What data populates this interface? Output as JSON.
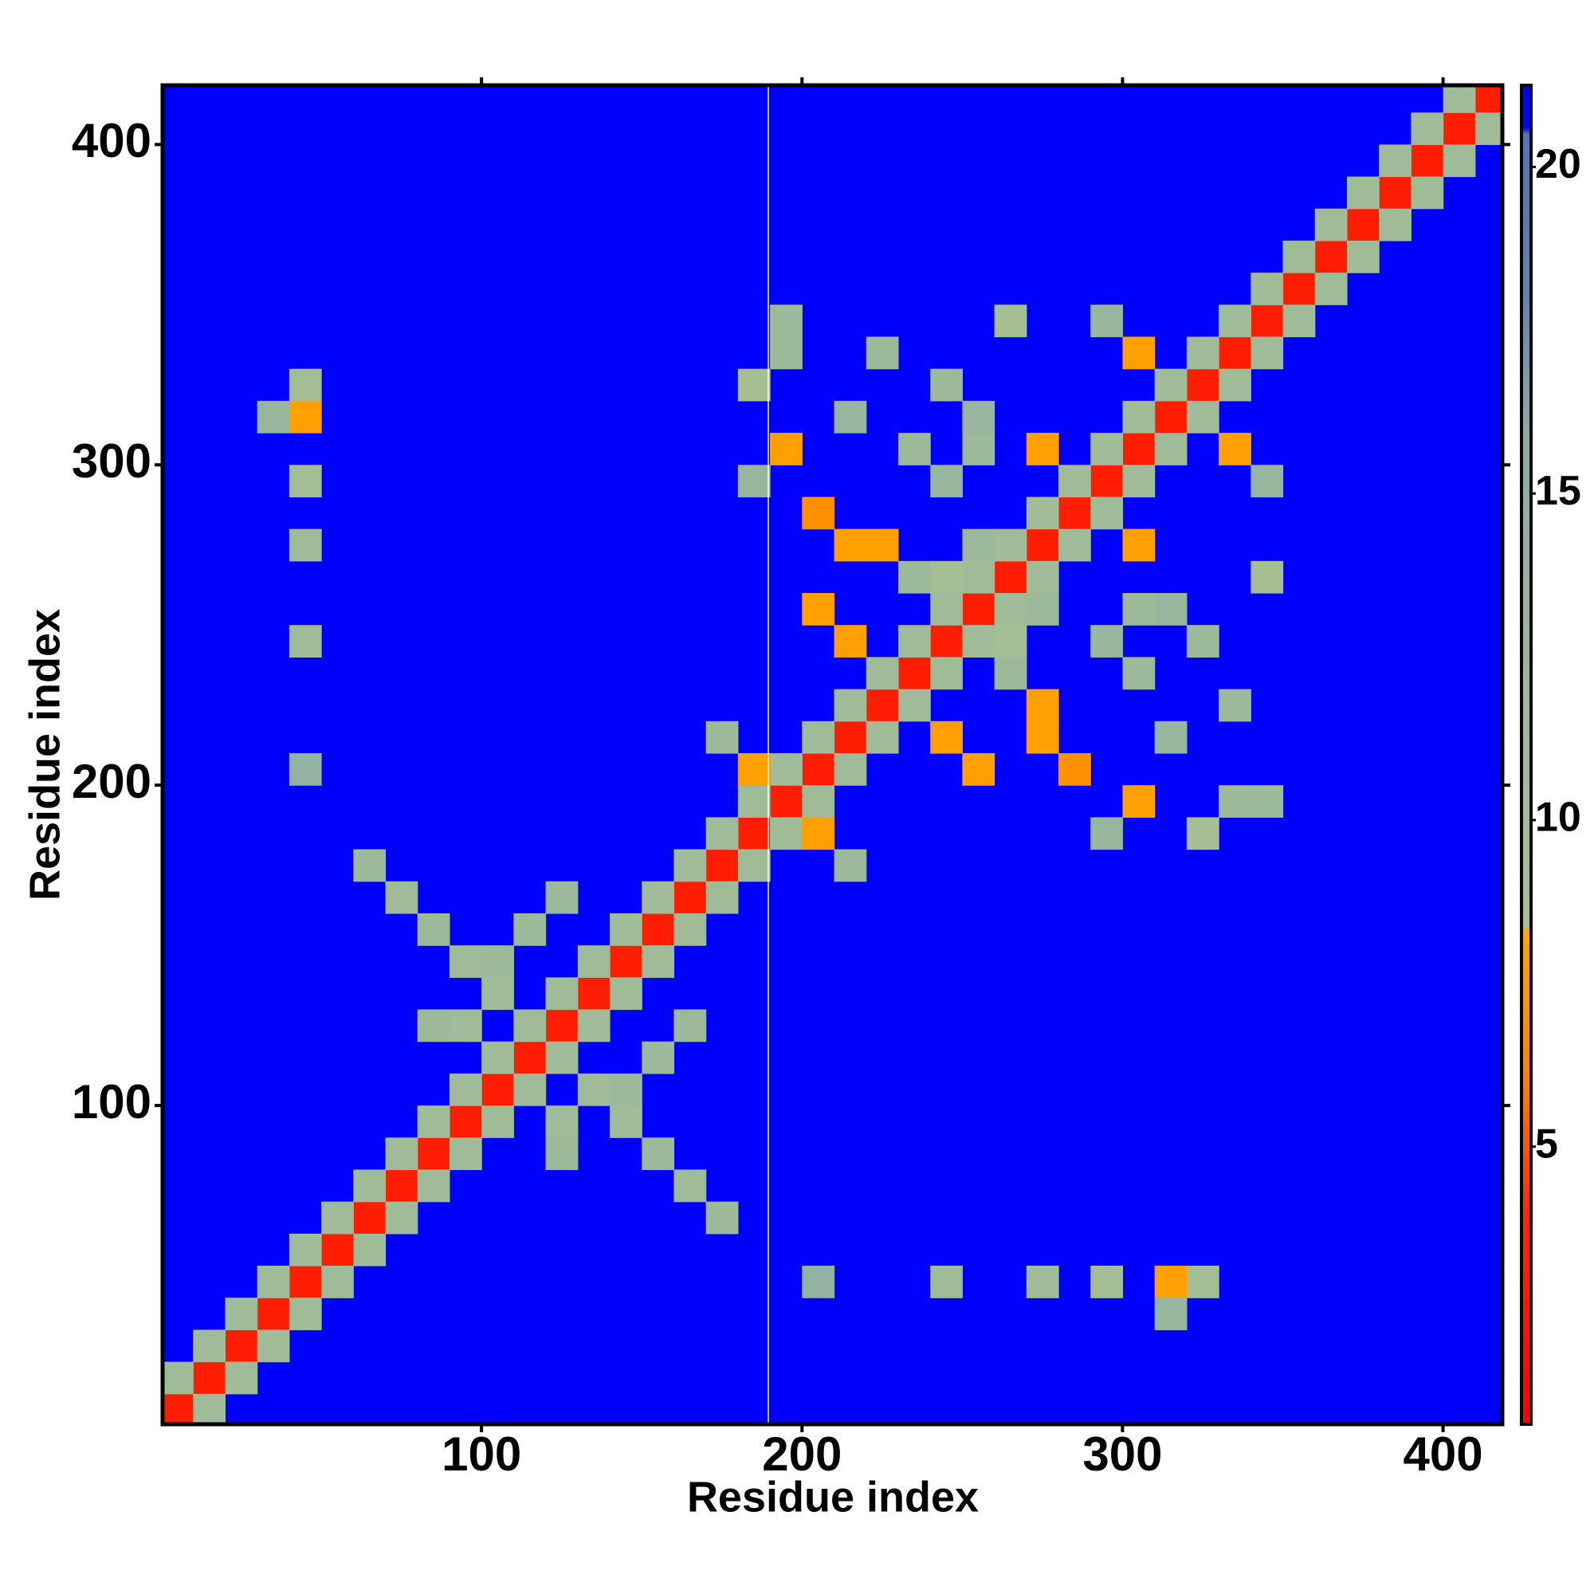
{
  "chart_data": {
    "type": "heatmap",
    "xlabel": "Residue index",
    "ylabel": "Residue index",
    "xlim": [
      0.5,
      418.5
    ],
    "ylim": [
      0.5,
      418.5
    ],
    "xticks": [
      100,
      200,
      300,
      400
    ],
    "yticks": [
      100,
      200,
      300,
      400
    ],
    "clim": [
      0.75,
      21.25
    ],
    "cticks": [
      5,
      10,
      15,
      20
    ],
    "background_color": "#0000ff",
    "colorscale": [
      [
        0.75,
        "#ff0000"
      ],
      [
        4,
        "#ff2a00"
      ],
      [
        6,
        "#ff7f00"
      ],
      [
        8.3,
        "#ffa500"
      ],
      [
        8.4,
        "#a8c090"
      ],
      [
        12,
        "#9cb99a"
      ],
      [
        16,
        "#8aaaa8"
      ],
      [
        18,
        "#5f86b0"
      ],
      [
        20.5,
        "#4a78b8"
      ],
      [
        20.6,
        "#0000ff"
      ],
      [
        21.25,
        "#0000ff"
      ]
    ],
    "x": [
      5,
      15,
      25,
      35,
      45,
      55,
      65,
      75,
      85,
      95,
      105,
      115,
      125,
      135,
      145,
      155,
      165,
      175,
      185,
      195,
      205,
      215,
      225,
      235,
      245,
      255,
      265,
      275,
      285,
      295,
      305,
      315,
      325,
      335,
      345,
      355,
      365,
      375,
      385,
      395,
      405,
      415,
      5,
      15,
      25,
      35,
      45,
      55,
      65,
      75,
      85,
      95,
      105,
      115,
      125,
      135,
      145,
      155,
      165,
      175,
      185,
      195,
      205,
      215,
      225,
      235,
      245,
      255,
      265,
      275,
      285,
      295,
      305,
      315,
      325,
      335,
      345,
      355,
      365,
      375,
      385,
      395,
      405,
      15,
      25,
      35,
      45,
      55,
      65,
      75,
      85,
      95,
      105,
      115,
      125,
      135,
      145,
      155,
      165,
      175,
      185,
      195,
      205,
      215,
      225,
      235,
      245,
      255,
      265,
      275,
      285,
      295,
      305,
      315,
      325,
      335,
      345,
      355,
      365,
      375,
      385,
      395,
      405,
      415,
      65,
      75,
      85,
      95,
      105,
      85,
      95,
      115,
      125,
      105,
      45,
      45,
      45,
      45,
      45,
      35,
      45,
      185,
      175,
      195,
      195,
      185,
      205,
      215,
      245,
      265,
      235,
      255,
      275,
      305,
      295,
      205,
      215,
      225,
      185,
      195,
      215,
      225,
      255,
      245,
      235,
      255,
      245,
      175,
      165,
      155,
      145,
      135,
      125,
      125,
      155,
      165,
      145,
      325,
      315,
      295,
      275,
      245,
      315,
      205,
      205,
      215,
      335,
      305,
      295,
      285,
      275,
      325,
      345,
      305,
      305,
      305,
      335,
      345,
      255,
      245,
      275,
      325,
      345,
      315,
      335,
      315,
      295,
      265,
      275,
      265
    ],
    "y": [
      5,
      15,
      25,
      35,
      45,
      55,
      65,
      75,
      85,
      95,
      105,
      115,
      125,
      135,
      145,
      155,
      165,
      175,
      185,
      195,
      205,
      215,
      225,
      235,
      245,
      255,
      265,
      275,
      285,
      295,
      305,
      315,
      325,
      335,
      345,
      355,
      365,
      375,
      385,
      395,
      405,
      415,
      15,
      25,
      35,
      45,
      55,
      65,
      75,
      85,
      95,
      105,
      115,
      125,
      135,
      145,
      155,
      165,
      175,
      185,
      195,
      205,
      215,
      225,
      235,
      245,
      255,
      265,
      275,
      285,
      295,
      305,
      315,
      325,
      335,
      345,
      355,
      365,
      375,
      385,
      395,
      405,
      415,
      5,
      15,
      25,
      35,
      45,
      55,
      65,
      75,
      85,
      95,
      105,
      115,
      125,
      135,
      145,
      155,
      165,
      175,
      185,
      195,
      205,
      215,
      225,
      235,
      245,
      255,
      265,
      275,
      285,
      295,
      305,
      315,
      325,
      335,
      345,
      355,
      365,
      375,
      385,
      395,
      405,
      175,
      165,
      155,
      145,
      135,
      125,
      125,
      155,
      165,
      145,
      325,
      315,
      295,
      275,
      245,
      315,
      205,
      205,
      215,
      335,
      305,
      295,
      285,
      275,
      325,
      345,
      305,
      305,
      305,
      335,
      345,
      255,
      245,
      275,
      325,
      345,
      315,
      335,
      315,
      295,
      265,
      275,
      265,
      65,
      75,
      85,
      95,
      105,
      85,
      95,
      115,
      125,
      105,
      45,
      45,
      45,
      45,
      45,
      35,
      45,
      185,
      175,
      195,
      195,
      185,
      205,
      215,
      245,
      265,
      235,
      255,
      275,
      305,
      295,
      205,
      215,
      225,
      185,
      195,
      215,
      225,
      255,
      245,
      235,
      255,
      245
    ],
    "values": [
      3,
      3,
      3,
      3,
      3,
      3,
      3,
      3,
      3,
      3,
      3,
      3,
      3,
      3,
      3,
      3,
      3,
      3,
      3,
      3,
      3,
      3,
      3,
      3,
      3,
      3,
      3,
      3,
      3,
      3,
      3,
      3,
      3,
      3,
      3,
      3,
      3,
      3,
      3,
      3,
      3,
      3,
      11,
      11,
      11,
      11,
      11,
      11,
      11,
      11,
      11,
      11,
      11,
      11,
      11,
      11,
      11,
      11,
      11,
      11,
      11,
      11,
      11,
      11,
      11,
      11,
      11,
      11,
      11,
      11,
      11,
      11,
      11,
      11,
      11,
      11,
      11,
      11,
      11,
      11,
      11,
      11,
      11,
      11,
      11,
      11,
      11,
      11,
      11,
      11,
      11,
      11,
      11,
      11,
      11,
      11,
      11,
      11,
      11,
      11,
      11,
      11,
      11,
      11,
      11,
      11,
      11,
      11,
      11,
      11,
      11,
      11,
      11,
      11,
      11,
      11,
      11,
      11,
      11,
      11,
      11,
      11,
      11,
      11,
      12,
      11,
      12,
      11,
      11,
      12,
      11,
      12,
      12,
      12,
      10,
      8,
      10,
      11,
      11,
      13,
      14,
      8,
      12,
      12,
      8,
      13,
      7,
      8,
      12,
      9,
      12,
      12,
      8,
      8,
      13,
      8,
      8,
      8,
      9,
      12,
      13,
      12,
      13,
      13,
      12,
      12,
      10,
      12,
      11,
      12,
      11,
      11,
      12,
      11,
      12,
      12,
      12,
      10,
      8,
      10,
      11,
      11,
      13,
      14,
      8,
      12,
      12,
      8,
      13,
      7,
      8,
      12,
      9,
      12,
      12,
      8,
      8,
      13,
      8,
      8,
      8,
      9,
      12,
      13,
      12,
      13,
      13,
      12,
      12,
      10
    ]
  }
}
